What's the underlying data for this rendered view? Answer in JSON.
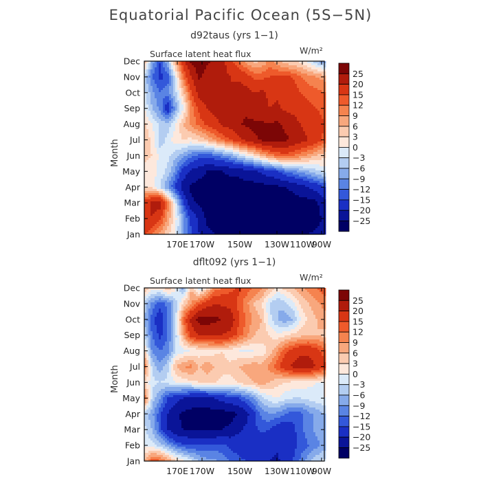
{
  "figure": {
    "title": "Equatorial Pacific Ocean (5S−5N)"
  },
  "colorbar": {
    "labels": [
      "25",
      "20",
      "15",
      "12",
      "9",
      "6",
      "3",
      "0",
      "−3",
      "−6",
      "−9",
      "−12",
      "−15",
      "−20",
      "−25"
    ],
    "colors": [
      "#7c0606",
      "#b01c0c",
      "#d83614",
      "#ee5a2b",
      "#f5834f",
      "#f8a77d",
      "#fbcbb0",
      "#fde8dc",
      "#dbeaf9",
      "#b3cdf1",
      "#86aaea",
      "#5a84e4",
      "#3358da",
      "#1a2fc4",
      "#0a1498",
      "#000064"
    ]
  },
  "chart_data": [
    {
      "type": "heatmap",
      "title": "d92taus (yrs 1−1)",
      "subtitle": "Surface latent heat flux",
      "unit": "W/m²",
      "ylabel": "Month",
      "x_ticks": [
        "170E",
        "170W",
        "150W",
        "130W",
        "110W",
        "90W"
      ],
      "y_ticks": [
        "Jan",
        "Feb",
        "Mar",
        "Apr",
        "May",
        "Jun",
        "Jul",
        "Aug",
        "Sep",
        "Oct",
        "Nov",
        "Dec"
      ],
      "x": [
        "155E",
        "160E",
        "165E",
        "170E",
        "175E",
        "180",
        "175W",
        "170W",
        "165W",
        "160W",
        "155W",
        "150W",
        "145W",
        "140W",
        "135W",
        "130W",
        "125W",
        "120W",
        "115W",
        "110W",
        "105W",
        "100W",
        "95W",
        "90W"
      ],
      "y": [
        "Jan",
        "Feb",
        "Mar",
        "Apr",
        "May",
        "Jun",
        "Jul",
        "Aug",
        "Sep",
        "Oct",
        "Nov",
        "Dec"
      ],
      "z": [
        [
          16,
          12,
          8,
          4,
          -1,
          -9,
          -15,
          -20,
          -24,
          -25,
          -26,
          -26,
          -26,
          -26,
          -26,
          -26,
          -26,
          -26,
          -26,
          -26,
          -26,
          -25,
          -24,
          -22
        ],
        [
          18,
          20,
          16,
          8,
          1,
          -8,
          -16,
          -21,
          -26,
          -27,
          -27,
          -27,
          -27,
          -27,
          -27,
          -27,
          -27,
          -27,
          -27,
          -27,
          -27,
          -27,
          -27,
          -24
        ],
        [
          17,
          21,
          23,
          11,
          -2,
          -15,
          -24,
          -26,
          -27,
          -27,
          -27,
          -27,
          -27,
          -27,
          -27,
          -27,
          -27,
          -27,
          -27,
          -27,
          -27,
          -27,
          -26,
          -21
        ],
        [
          3,
          2,
          -3,
          -9,
          -16,
          -23,
          -26,
          -27,
          -27,
          -27,
          -27,
          -27,
          -27,
          -27,
          -27,
          -27,
          -26,
          -26,
          -25,
          -24,
          -22,
          -20,
          -18,
          -15
        ],
        [
          2,
          1,
          -1,
          -4,
          -10,
          -17,
          -21,
          -23,
          -25,
          -25,
          -25,
          -24,
          -24,
          -22,
          -21,
          -19,
          -17,
          -15,
          -12,
          -10,
          -8,
          -6,
          -4,
          -2
        ],
        [
          4,
          3,
          -1,
          -2,
          -5,
          -8,
          -11,
          -13,
          -14,
          -12,
          -10,
          -8,
          -4,
          -1,
          2,
          6,
          10,
          12,
          14,
          12,
          10,
          8,
          6,
          4
        ],
        [
          6,
          2,
          -5,
          -2,
          2,
          3,
          2,
          4,
          6,
          9,
          12,
          15,
          18,
          21,
          24,
          26,
          27,
          27,
          26,
          24,
          22,
          20,
          17,
          14
        ],
        [
          4,
          0,
          -4,
          -5,
          0,
          6,
          10,
          13,
          16,
          18,
          21,
          22,
          24,
          26,
          26,
          26,
          25,
          26,
          24,
          23,
          20,
          18,
          17,
          15
        ],
        [
          0,
          -6,
          -10,
          -18,
          -8,
          0,
          10,
          16,
          20,
          22,
          23,
          24,
          23,
          24,
          22,
          22,
          20,
          21,
          19,
          18,
          16,
          16,
          15,
          14
        ],
        [
          -2,
          -8,
          -12,
          -10,
          -4,
          5,
          15,
          22,
          24,
          22,
          21,
          20,
          23,
          22,
          20,
          21,
          19,
          19,
          18,
          17,
          15,
          14,
          13,
          12
        ],
        [
          -4,
          -12,
          -16,
          -14,
          -1,
          12,
          20,
          26,
          23,
          22,
          22,
          20,
          19,
          17,
          14,
          14,
          15,
          16,
          16,
          15,
          12,
          10,
          9,
          8
        ],
        [
          6,
          -7,
          -15,
          -6,
          8,
          18,
          26,
          28,
          26,
          24,
          22,
          16,
          12,
          8,
          5,
          6,
          10,
          7,
          4,
          3,
          2,
          -1,
          -5,
          -9
        ]
      ]
    },
    {
      "type": "heatmap",
      "title": "dflt092 (yrs 1−1)",
      "subtitle": "Surface latent heat flux",
      "unit": "W/m²",
      "ylabel": "Month",
      "x_ticks": [
        "170E",
        "170W",
        "150W",
        "130W",
        "110W",
        "90W"
      ],
      "y_ticks": [
        "Jan",
        "Feb",
        "Mar",
        "Apr",
        "May",
        "Jun",
        "Jul",
        "Aug",
        "Sep",
        "Oct",
        "Nov",
        "Dec"
      ],
      "x": [
        "155E",
        "160E",
        "165E",
        "170E",
        "175E",
        "180",
        "175W",
        "170W",
        "165W",
        "160W",
        "155W",
        "150W",
        "145W",
        "140W",
        "135W",
        "130W",
        "125W",
        "120W",
        "115W",
        "110W",
        "105W",
        "100W",
        "95W",
        "90W"
      ],
      "y": [
        "Jan",
        "Feb",
        "Mar",
        "Apr",
        "May",
        "Jun",
        "Jul",
        "Aug",
        "Sep",
        "Oct",
        "Nov",
        "Dec"
      ],
      "z": [
        [
          6,
          14,
          13,
          9,
          4,
          1,
          -2,
          -6,
          -8,
          -8,
          -10,
          -12,
          -14,
          -15,
          -17,
          -19,
          -20,
          -21,
          -18,
          -15,
          -11,
          -7,
          -4,
          -2
        ],
        [
          -1,
          -2,
          -4,
          -8,
          -12,
          -14,
          -15,
          -15,
          -14,
          -14,
          -14,
          -16,
          -17,
          -18,
          -18,
          -18,
          -18,
          -19,
          -18,
          -16,
          -14,
          -12,
          -10,
          -8
        ],
        [
          -2,
          -6,
          -14,
          -20,
          -24,
          -25,
          -26,
          -26,
          -26,
          -26,
          -25,
          -24,
          -21,
          -19,
          -16,
          -14,
          -15,
          -18,
          -18,
          -16,
          -13,
          -10,
          -8,
          -7
        ],
        [
          -4,
          -8,
          -14,
          -20,
          -24,
          -26,
          -27,
          -27,
          -27,
          -27,
          -27,
          -27,
          -25,
          -22,
          -16,
          -11,
          -9,
          -10,
          -12,
          -14,
          -13,
          -10,
          -8,
          -6
        ],
        [
          13,
          -4,
          -9,
          -15,
          -18,
          -20,
          -21,
          -22,
          -22,
          -20,
          -18,
          -16,
          -15,
          -12,
          -9,
          -4,
          -1,
          0,
          -2,
          -3,
          -3,
          -2,
          -1,
          0
        ],
        [
          3,
          -2,
          -3,
          -2,
          0,
          1,
          2,
          3,
          4,
          3,
          2,
          2,
          3,
          5,
          6,
          8,
          6,
          4,
          3,
          2,
          2,
          1,
          0,
          0
        ],
        [
          12,
          -4,
          -8,
          -4,
          6,
          9,
          10,
          6,
          8,
          6,
          4,
          4,
          6,
          7,
          8,
          7,
          10,
          14,
          18,
          21,
          23,
          22,
          20,
          16
        ],
        [
          4,
          -10,
          -12,
          -10,
          -3,
          -1,
          0,
          1,
          1,
          2,
          3,
          1,
          0,
          -1,
          0,
          1,
          4,
          9,
          14,
          17,
          19,
          19,
          17,
          13
        ],
        [
          -4,
          -12,
          -16,
          -12,
          -4,
          8,
          17,
          20,
          21,
          21,
          20,
          18,
          14,
          10,
          6,
          5,
          3,
          1,
          2,
          4,
          5,
          6,
          6,
          5
        ],
        [
          -6,
          -14,
          -18,
          -12,
          -3,
          12,
          22,
          27,
          27,
          26,
          25,
          24,
          16,
          12,
          8,
          6,
          -2,
          -6,
          -8,
          -6,
          0,
          4,
          6,
          8
        ],
        [
          -4,
          -10,
          -14,
          -11,
          -5,
          4,
          9,
          14,
          18,
          20,
          19,
          18,
          14,
          10,
          6,
          3,
          -3,
          -6,
          -4,
          -1,
          4,
          6,
          8,
          10
        ],
        [
          6,
          2,
          1,
          6,
          1,
          -8,
          6,
          -3,
          3,
          10,
          12,
          14,
          16,
          14,
          12,
          10,
          6,
          2,
          4,
          6,
          8,
          10,
          12,
          14
        ]
      ]
    }
  ]
}
